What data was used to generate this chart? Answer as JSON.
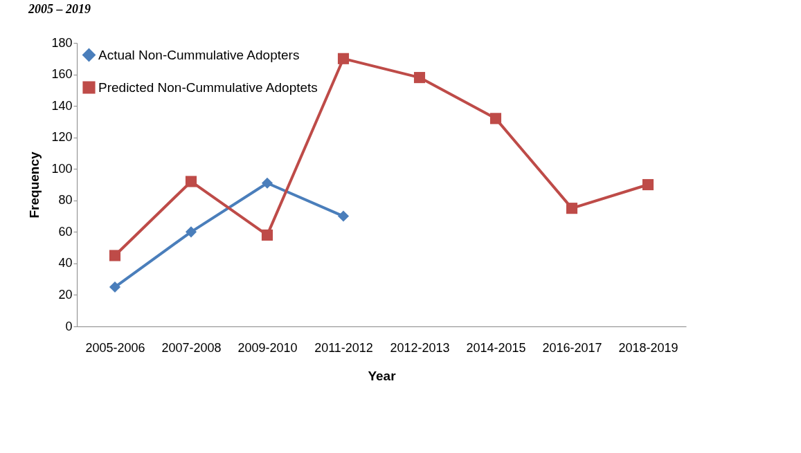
{
  "chart_data": {
    "type": "line",
    "xlabel": "Year",
    "ylabel": "Frequency",
    "annotations": [
      "2005 – 2019"
    ],
    "categories": [
      "2005-2006",
      "2007-2008",
      "2009-2010",
      "2011-2012",
      "2012-2013",
      "2014-2015",
      "2016-2017",
      "2018-2019"
    ],
    "series": [
      {
        "name": "Actual Non-Cummulative Adopters",
        "color": "#4a7ebb",
        "marker": "diamond",
        "values": [
          25,
          60,
          91,
          70,
          null,
          null,
          null,
          null
        ]
      },
      {
        "name": "Predicted Non-Cummulative Adoptets",
        "color": "#be4b48",
        "marker": "square",
        "values": [
          45,
          92,
          58,
          170,
          158,
          132,
          75,
          90
        ]
      }
    ],
    "ylim": [
      0,
      180
    ],
    "yticks": [
      0,
      20,
      40,
      60,
      80,
      100,
      120,
      140,
      160,
      180
    ],
    "grid": false,
    "legend": "top left",
    "line_style": "solid"
  }
}
